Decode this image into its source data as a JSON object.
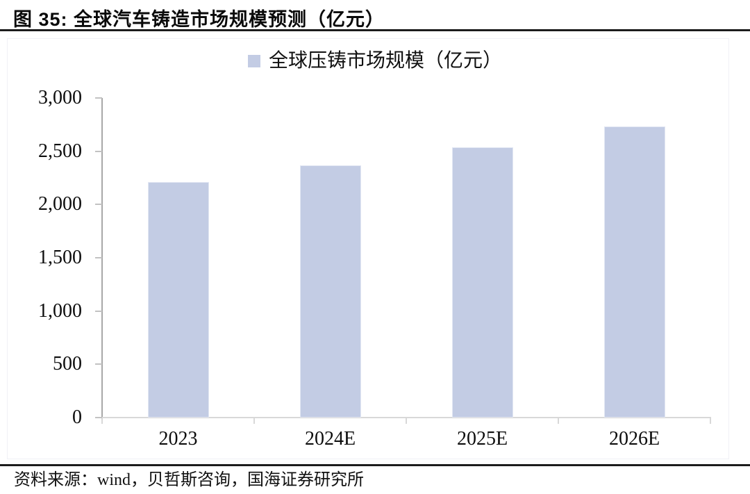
{
  "figure": {
    "title": "图 35: 全球汽车铸造市场规模预测（亿元）",
    "source": "资料来源：wind，贝哲斯咨询，国海证券研究所"
  },
  "chart_data": {
    "type": "bar",
    "title": "全球汽车铸造市场规模预测（亿元）",
    "legend": [
      "全球压铸市场规模（亿元）"
    ],
    "legend_position": "top-center",
    "categories": [
      "2023",
      "2024E",
      "2025E",
      "2026E"
    ],
    "values": [
      2210,
      2370,
      2540,
      2730
    ],
    "xlabel": "",
    "ylabel": "",
    "ylim": [
      0,
      3000
    ],
    "yticks": [
      0,
      500,
      1000,
      1500,
      2000,
      2500,
      3000
    ],
    "ytick_labels": [
      "0",
      "500",
      "1,000",
      "1,500",
      "2,000",
      "2,500",
      "3,000"
    ],
    "grid": false,
    "bar_color": "#C3CCE4",
    "y_axis_color": "#A8A8A8",
    "x_axis_color": "#D8D8D8"
  }
}
